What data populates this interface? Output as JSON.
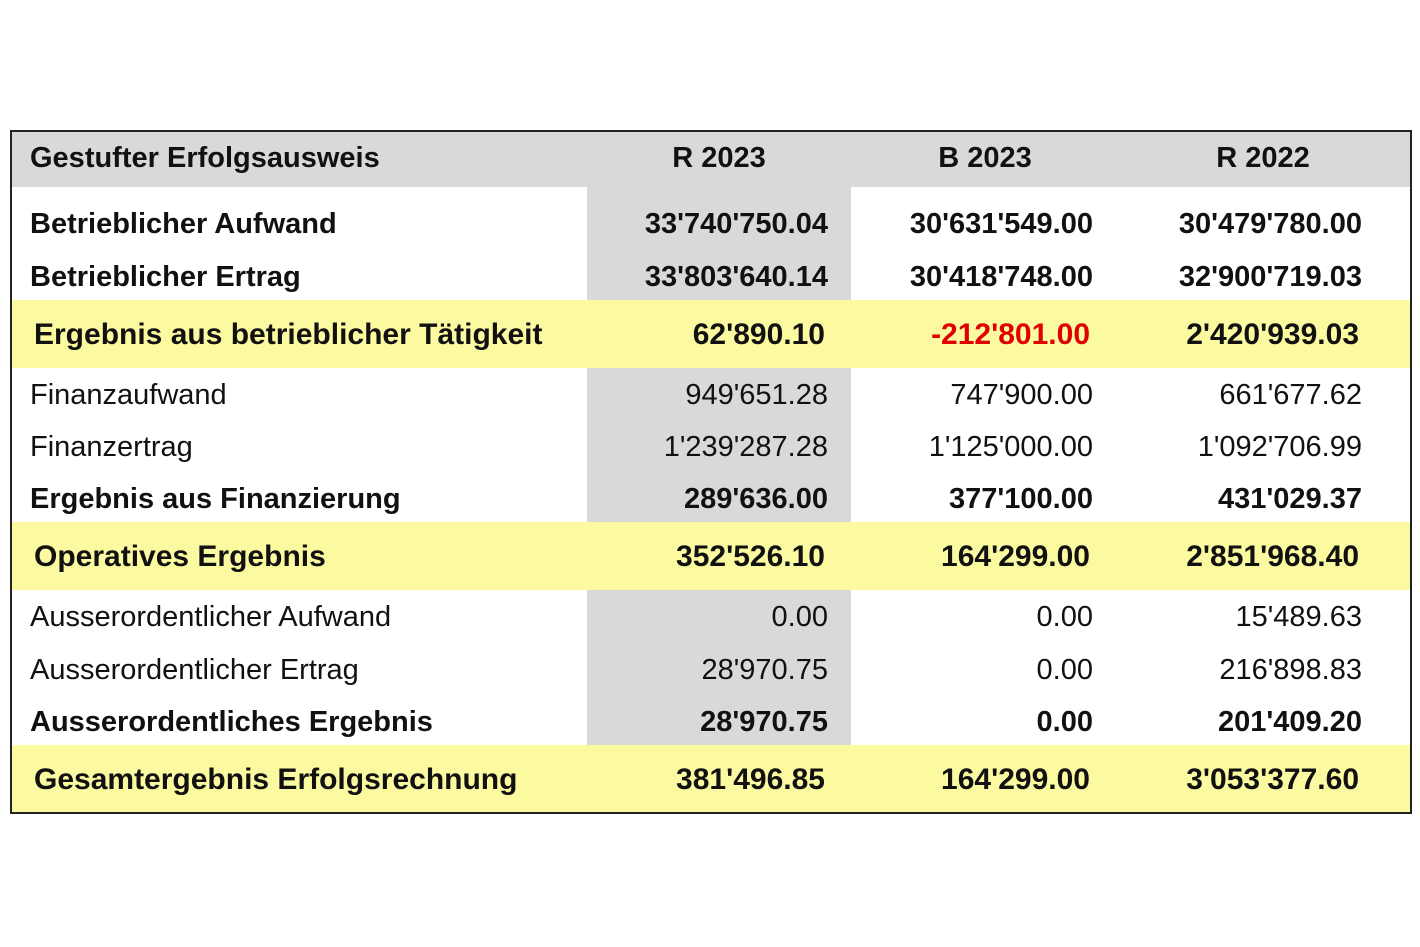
{
  "table": {
    "header": [
      "Gestufter Erfolgsausweis",
      "R 2023",
      "B 2023",
      "R 2022"
    ],
    "rows": [
      [
        "Betrieblicher Aufwand",
        "33'740'750.04",
        "30'631'549.00",
        "30'479'780.00"
      ],
      [
        "Betrieblicher Ertrag",
        "33'803'640.14",
        "30'418'748.00",
        "32'900'719.03"
      ],
      [
        "Ergebnis aus betrieblicher Tätigkeit",
        "62'890.10",
        "-212'801.00",
        "2'420'939.03"
      ],
      [
        "Finanzaufwand",
        "949'651.28",
        "747'900.00",
        "661'677.62"
      ],
      [
        "Finanzertrag",
        "1'239'287.28",
        "1'125'000.00",
        "1'092'706.99"
      ],
      [
        "Ergebnis aus Finanzierung",
        "289'636.00",
        "377'100.00",
        "431'029.37"
      ],
      [
        "Operatives Ergebnis",
        "352'526.10",
        "164'299.00",
        "2'851'968.40"
      ],
      [
        "Ausserordentlicher Aufwand",
        "0.00",
        "0.00",
        "15'489.63"
      ],
      [
        "Ausserordentlicher Ertrag",
        "28'970.75",
        "0.00",
        "216'898.83"
      ],
      [
        "Ausserordentliches Ergebnis",
        "28'970.75",
        "0.00",
        "201'409.20"
      ],
      [
        "Gesamtergebnis Erfolgsrechnung",
        "381'496.85",
        "164'299.00",
        "3'053'377.60"
      ]
    ]
  }
}
